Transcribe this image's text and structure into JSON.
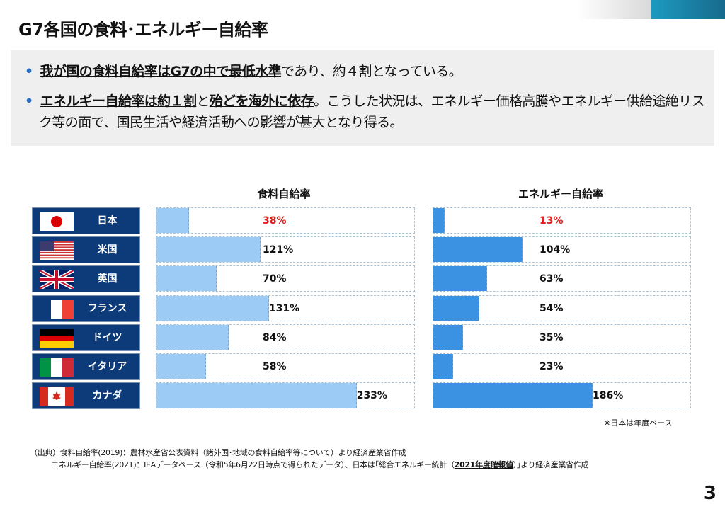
{
  "title": "G7各国の食料･エネルギー自給率",
  "summary": {
    "b1_u": "我が国の食料自給率はG7の中で最低水準",
    "b1_t": "であり、約４割となっている。",
    "b2_u1": "エネルギー自給率は約１割",
    "b2_t1": "と",
    "b2_u2": "殆どを海外に依存",
    "b2_t2": "。こうした状況は、エネルギー価格高騰やエネルギー供給途絶リスク等の面で、国民生活や経済活動への影響が甚大となり得る。"
  },
  "colors": {
    "food": "#9ccbf5",
    "energy": "#3b92e3",
    "label_bg": "#0d3a78",
    "highlight": "#e02020"
  },
  "chart_data": {
    "type": "bar",
    "scale_max": 300,
    "food_title": "食料自給率",
    "energy_title": "エネルギー自給率",
    "categories": [
      "日本",
      "米国",
      "英国",
      "フランス",
      "ドイツ",
      "イタリア",
      "カナダ"
    ],
    "flags": [
      "jp-flag-icon",
      "us-flag-icon",
      "uk-flag-icon",
      "fr-flag-icon",
      "de-flag-icon",
      "it-flag-icon",
      "ca-flag-icon"
    ],
    "series": [
      {
        "name": "食料自給率",
        "values": [
          38,
          121,
          70,
          131,
          84,
          58,
          233
        ]
      },
      {
        "name": "エネルギー自給率",
        "values": [
          13,
          104,
          63,
          54,
          35,
          23,
          186
        ]
      }
    ]
  },
  "note": "※日本は年度ベース",
  "sources": {
    "line1": "（出典）食料自給率(2019)：農林水産省公表資料（諸外国･地域の食料自給率等について）より経済産業省作成",
    "line2a": "エネルギー自給率(2021)：IEAデータベース（令和5年6月22日時点で得られたデータ）、日本は｢総合エネルギー統計（",
    "line2b": "2021年度確報値",
    "line2c": "）｣より経済産業省作成"
  },
  "page_number": "3"
}
